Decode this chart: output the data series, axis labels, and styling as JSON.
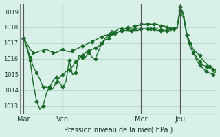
{
  "bg_color": "#d8f0e8",
  "grid_color": "#aacfba",
  "line_color": "#1a6b2a",
  "marker_color": "#1a6b2a",
  "title": "",
  "xlabel": "Pression niveau de la mer( hPa )",
  "ylabel": "",
  "ylim": [
    1012.5,
    1019.5
  ],
  "yticks": [
    1013,
    1014,
    1015,
    1016,
    1017,
    1018,
    1019
  ],
  "xtick_labels": [
    "Mar",
    "Ven",
    "Mer",
    "Jeu"
  ],
  "xtick_positions": [
    0,
    12,
    36,
    48
  ],
  "vlines": [
    0,
    12,
    36,
    48
  ],
  "total_points": 60,
  "series1": [
    1017.3,
    1016.8,
    1016.1,
    1015.5,
    1015.1,
    1014.7,
    1014.2,
    1014.2,
    1014.1,
    1014.1,
    1014.5,
    1014.8,
    1015.0,
    1015.2,
    1015.3,
    1015.5,
    1015.8,
    1016.0,
    1016.2,
    1016.4,
    1016.5,
    1016.6,
    1016.7,
    1016.8,
    1017.0,
    1017.2,
    1017.3,
    1017.5,
    1017.6,
    1017.7,
    1017.8,
    1017.9,
    1018.0,
    1018.0,
    1018.1,
    1018.1,
    1018.2,
    1018.2,
    1018.2,
    1018.2,
    1018.2,
    1018.2,
    1018.1,
    1018.1,
    1018.0,
    1018.0,
    1017.9,
    1017.9,
    1019.0,
    1018.6,
    1017.5,
    1016.8,
    1016.4,
    1016.1,
    1015.8,
    1015.6,
    1015.5,
    1015.4,
    1015.3,
    1015.2
  ],
  "series2": [
    1017.3,
    1017.0,
    1016.6,
    1016.4,
    1016.4,
    1016.5,
    1016.5,
    1016.6,
    1016.5,
    1016.4,
    1016.4,
    1016.5,
    1016.6,
    1016.5,
    1016.45,
    1016.5,
    1016.6,
    1016.7,
    1016.8,
    1016.9,
    1017.0,
    1017.1,
    1017.2,
    1017.3,
    1017.4,
    1017.5,
    1017.5,
    1017.6,
    1017.7,
    1017.7,
    1017.8,
    1017.8,
    1017.8,
    1017.8,
    1017.8,
    1017.8,
    1017.9,
    1017.9,
    1017.9,
    1017.9,
    1017.85,
    1017.8,
    1017.8,
    1017.8,
    1017.8,
    1017.9,
    1017.9,
    1017.9,
    1019.1,
    1018.8,
    1017.6,
    1017.0,
    1016.6,
    1016.4,
    1016.2,
    1015.9,
    1015.7,
    1015.5,
    1015.4,
    1015.3
  ],
  "series3": [
    1017.3,
    1016.7,
    1015.9,
    1014.4,
    1013.3,
    1012.8,
    1013.0,
    1013.8,
    1014.2,
    1014.6,
    1014.8,
    1014.5,
    1014.2,
    1014.55,
    1015.9,
    1015.0,
    1015.1,
    1016.2,
    1016.1,
    1016.1,
    1016.4,
    1016.1,
    1016.0,
    1016.5,
    1017.0,
    1017.3,
    1017.5,
    1017.8,
    1017.7,
    1017.9,
    1017.9,
    1017.9,
    1017.9,
    1017.9,
    1017.9,
    1017.9,
    1017.9,
    1017.9,
    1017.9,
    1017.9,
    1017.9,
    1017.9,
    1017.85,
    1017.8,
    1017.8,
    1017.9,
    1017.9,
    1018.0,
    1019.3,
    1018.9,
    1017.5,
    1016.8,
    1016.4,
    1015.9,
    1015.6,
    1015.4,
    1015.2,
    1015.1,
    1015.0,
    1015.2
  ]
}
